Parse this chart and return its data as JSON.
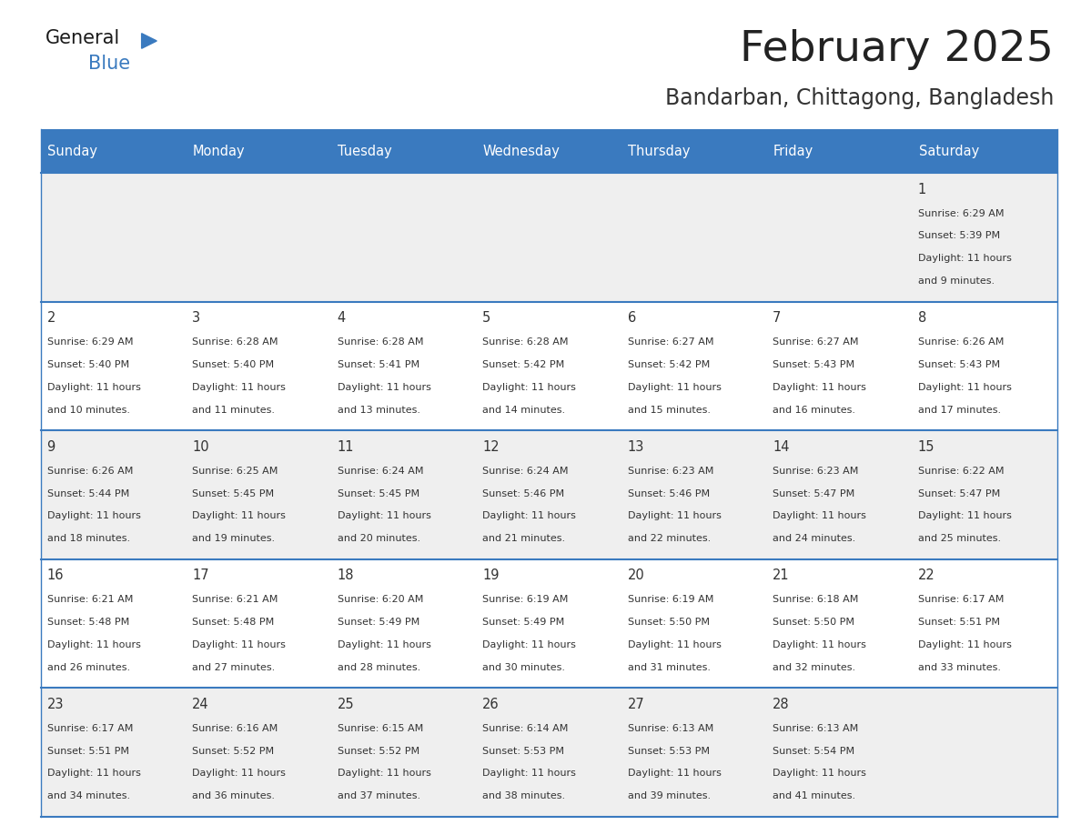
{
  "title": "February 2025",
  "subtitle": "Bandarban, Chittagong, Bangladesh",
  "days_of_week": [
    "Sunday",
    "Monday",
    "Tuesday",
    "Wednesday",
    "Thursday",
    "Friday",
    "Saturday"
  ],
  "header_bg": "#3a7abf",
  "header_text": "#ffffff",
  "row_bg_odd": "#efefef",
  "row_bg_even": "#ffffff",
  "cell_text_color": "#333333",
  "day_num_color": "#333333",
  "border_color": "#3a7abf",
  "title_color": "#222222",
  "subtitle_color": "#333333",
  "logo_general_color": "#1a1a1a",
  "logo_blue_color": "#3a7abf",
  "logo_triangle_color": "#3a7abf",
  "calendar": [
    [
      null,
      null,
      null,
      null,
      null,
      null,
      {
        "day": 1,
        "sunrise": "6:29 AM",
        "sunset": "5:39 PM",
        "daylight": "11 hours",
        "daylight2": "and 9 minutes."
      }
    ],
    [
      {
        "day": 2,
        "sunrise": "6:29 AM",
        "sunset": "5:40 PM",
        "daylight": "11 hours",
        "daylight2": "and 10 minutes."
      },
      {
        "day": 3,
        "sunrise": "6:28 AM",
        "sunset": "5:40 PM",
        "daylight": "11 hours",
        "daylight2": "and 11 minutes."
      },
      {
        "day": 4,
        "sunrise": "6:28 AM",
        "sunset": "5:41 PM",
        "daylight": "11 hours",
        "daylight2": "and 13 minutes."
      },
      {
        "day": 5,
        "sunrise": "6:28 AM",
        "sunset": "5:42 PM",
        "daylight": "11 hours",
        "daylight2": "and 14 minutes."
      },
      {
        "day": 6,
        "sunrise": "6:27 AM",
        "sunset": "5:42 PM",
        "daylight": "11 hours",
        "daylight2": "and 15 minutes."
      },
      {
        "day": 7,
        "sunrise": "6:27 AM",
        "sunset": "5:43 PM",
        "daylight": "11 hours",
        "daylight2": "and 16 minutes."
      },
      {
        "day": 8,
        "sunrise": "6:26 AM",
        "sunset": "5:43 PM",
        "daylight": "11 hours",
        "daylight2": "and 17 minutes."
      }
    ],
    [
      {
        "day": 9,
        "sunrise": "6:26 AM",
        "sunset": "5:44 PM",
        "daylight": "11 hours",
        "daylight2": "and 18 minutes."
      },
      {
        "day": 10,
        "sunrise": "6:25 AM",
        "sunset": "5:45 PM",
        "daylight": "11 hours",
        "daylight2": "and 19 minutes."
      },
      {
        "day": 11,
        "sunrise": "6:24 AM",
        "sunset": "5:45 PM",
        "daylight": "11 hours",
        "daylight2": "and 20 minutes."
      },
      {
        "day": 12,
        "sunrise": "6:24 AM",
        "sunset": "5:46 PM",
        "daylight": "11 hours",
        "daylight2": "and 21 minutes."
      },
      {
        "day": 13,
        "sunrise": "6:23 AM",
        "sunset": "5:46 PM",
        "daylight": "11 hours",
        "daylight2": "and 22 minutes."
      },
      {
        "day": 14,
        "sunrise": "6:23 AM",
        "sunset": "5:47 PM",
        "daylight": "11 hours",
        "daylight2": "and 24 minutes."
      },
      {
        "day": 15,
        "sunrise": "6:22 AM",
        "sunset": "5:47 PM",
        "daylight": "11 hours",
        "daylight2": "and 25 minutes."
      }
    ],
    [
      {
        "day": 16,
        "sunrise": "6:21 AM",
        "sunset": "5:48 PM",
        "daylight": "11 hours",
        "daylight2": "and 26 minutes."
      },
      {
        "day": 17,
        "sunrise": "6:21 AM",
        "sunset": "5:48 PM",
        "daylight": "11 hours",
        "daylight2": "and 27 minutes."
      },
      {
        "day": 18,
        "sunrise": "6:20 AM",
        "sunset": "5:49 PM",
        "daylight": "11 hours",
        "daylight2": "and 28 minutes."
      },
      {
        "day": 19,
        "sunrise": "6:19 AM",
        "sunset": "5:49 PM",
        "daylight": "11 hours",
        "daylight2": "and 30 minutes."
      },
      {
        "day": 20,
        "sunrise": "6:19 AM",
        "sunset": "5:50 PM",
        "daylight": "11 hours",
        "daylight2": "and 31 minutes."
      },
      {
        "day": 21,
        "sunrise": "6:18 AM",
        "sunset": "5:50 PM",
        "daylight": "11 hours",
        "daylight2": "and 32 minutes."
      },
      {
        "day": 22,
        "sunrise": "6:17 AM",
        "sunset": "5:51 PM",
        "daylight": "11 hours",
        "daylight2": "and 33 minutes."
      }
    ],
    [
      {
        "day": 23,
        "sunrise": "6:17 AM",
        "sunset": "5:51 PM",
        "daylight": "11 hours",
        "daylight2": "and 34 minutes."
      },
      {
        "day": 24,
        "sunrise": "6:16 AM",
        "sunset": "5:52 PM",
        "daylight": "11 hours",
        "daylight2": "and 36 minutes."
      },
      {
        "day": 25,
        "sunrise": "6:15 AM",
        "sunset": "5:52 PM",
        "daylight": "11 hours",
        "daylight2": "and 37 minutes."
      },
      {
        "day": 26,
        "sunrise": "6:14 AM",
        "sunset": "5:53 PM",
        "daylight": "11 hours",
        "daylight2": "and 38 minutes."
      },
      {
        "day": 27,
        "sunrise": "6:13 AM",
        "sunset": "5:53 PM",
        "daylight": "11 hours",
        "daylight2": "and 39 minutes."
      },
      {
        "day": 28,
        "sunrise": "6:13 AM",
        "sunset": "5:54 PM",
        "daylight": "11 hours",
        "daylight2": "and 41 minutes."
      },
      null
    ]
  ]
}
